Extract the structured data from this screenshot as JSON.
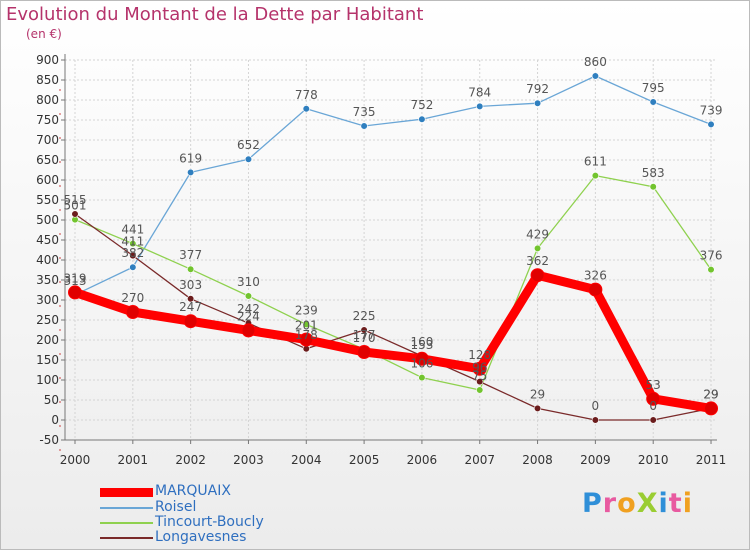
{
  "title": "Evolution du Montant de la Dette par Habitant",
  "unit_label": "(en €)",
  "logo": "ProXiti",
  "chart_data": {
    "type": "line",
    "title": "Evolution du Montant de la Dette par Habitant",
    "ylabel": "(en €)",
    "xlabel": "",
    "categories": [
      "2000",
      "2001",
      "2002",
      "2003",
      "2004",
      "2005",
      "2006",
      "2007",
      "2008",
      "2009",
      "2010",
      "2011"
    ],
    "ylim": [
      -50,
      900
    ],
    "yticks": [
      -50,
      0,
      50,
      100,
      150,
      200,
      250,
      300,
      350,
      400,
      450,
      500,
      550,
      600,
      650,
      700,
      750,
      800,
      850,
      900
    ],
    "grid": true,
    "legend_position": "bottom-left",
    "series": [
      {
        "name": "MARQUAIX",
        "color": "#ff0000",
        "point_color": "#e00000",
        "values": [
          319,
          270,
          247,
          224,
          201,
          170,
          153,
          128,
          362,
          326,
          53,
          29
        ]
      },
      {
        "name": "Roisel",
        "color": "#6aa6d6",
        "point_color": "#2f7fbf",
        "values": [
          313,
          382,
          619,
          652,
          778,
          735,
          752,
          784,
          792,
          860,
          795,
          739
        ]
      },
      {
        "name": "Tincourt-Boucly",
        "color": "#8fd14f",
        "point_color": "#72c42e",
        "values": [
          501,
          441,
          377,
          310,
          239,
          177,
          106,
          75,
          429,
          611,
          583,
          376
        ]
      },
      {
        "name": "Longavesnes",
        "color": "#7a2a2a",
        "point_color": "#6b1c1c",
        "values": [
          515,
          411,
          303,
          242,
          178,
          225,
          160,
          96,
          29,
          0,
          0,
          29
        ]
      }
    ]
  }
}
